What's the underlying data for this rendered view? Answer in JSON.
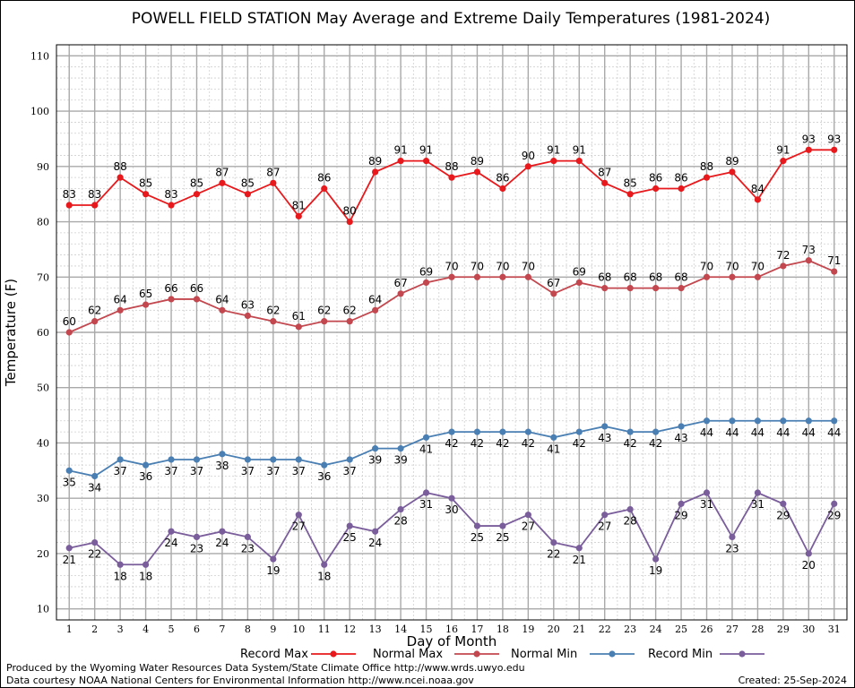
{
  "chart_data": {
    "type": "line",
    "title": "POWELL FIELD STATION May Average and Extreme Daily Temperatures (1981-2024)",
    "xlabel": "Day of Month",
    "ylabel": "Temperature (F)",
    "x": [
      1,
      2,
      3,
      4,
      5,
      6,
      7,
      8,
      9,
      10,
      11,
      12,
      13,
      14,
      15,
      16,
      17,
      18,
      19,
      20,
      21,
      22,
      23,
      24,
      25,
      26,
      27,
      28,
      29,
      30,
      31
    ],
    "xlim": [
      0.5,
      31.5
    ],
    "ylim": [
      8,
      112
    ],
    "yticks": [
      10,
      20,
      30,
      40,
      50,
      60,
      70,
      80,
      90,
      100,
      110
    ],
    "grid": true,
    "legend_position": "bottom",
    "series": [
      {
        "name": "Record Max",
        "color": "#e8191c",
        "label_position": "above",
        "values": [
          83,
          83,
          88,
          85,
          83,
          85,
          87,
          85,
          87,
          81,
          86,
          80,
          89,
          91,
          91,
          88,
          89,
          86,
          90,
          91,
          91,
          87,
          85,
          86,
          86,
          88,
          89,
          84,
          91,
          93,
          93
        ]
      },
      {
        "name": "Normal Max",
        "color": "#c2474e",
        "label_position": "above",
        "values": [
          60,
          62,
          64,
          65,
          66,
          66,
          64,
          63,
          62,
          61,
          62,
          62,
          64,
          67,
          69,
          70,
          70,
          70,
          70,
          67,
          69,
          68,
          68,
          68,
          68,
          70,
          70,
          70,
          72,
          73,
          71
        ]
      },
      {
        "name": "Normal Min",
        "color": "#4a7fb3",
        "label_position": "below",
        "values": [
          35,
          34,
          37,
          36,
          37,
          37,
          38,
          37,
          37,
          37,
          36,
          37,
          39,
          39,
          41,
          42,
          42,
          42,
          42,
          41,
          42,
          43,
          42,
          42,
          43,
          44,
          44,
          44,
          44,
          44,
          44
        ]
      },
      {
        "name": "Record Min",
        "color": "#7a5d9b",
        "label_position": "below",
        "values": [
          21,
          22,
          18,
          18,
          24,
          23,
          24,
          23,
          19,
          27,
          18,
          25,
          24,
          28,
          31,
          30,
          25,
          25,
          27,
          22,
          21,
          27,
          28,
          19,
          29,
          31,
          23,
          31,
          29,
          20,
          29
        ]
      }
    ]
  },
  "footer": {
    "produced_by": "Produced by the Wyoming Water Resources Data System/State Climate Office http://www.wrds.uwyo.edu",
    "courtesy": "Data courtesy NOAA National Centers for Environmental Information http://www.ncei.noaa.gov",
    "created": "Created:  25-Sep-2024"
  }
}
